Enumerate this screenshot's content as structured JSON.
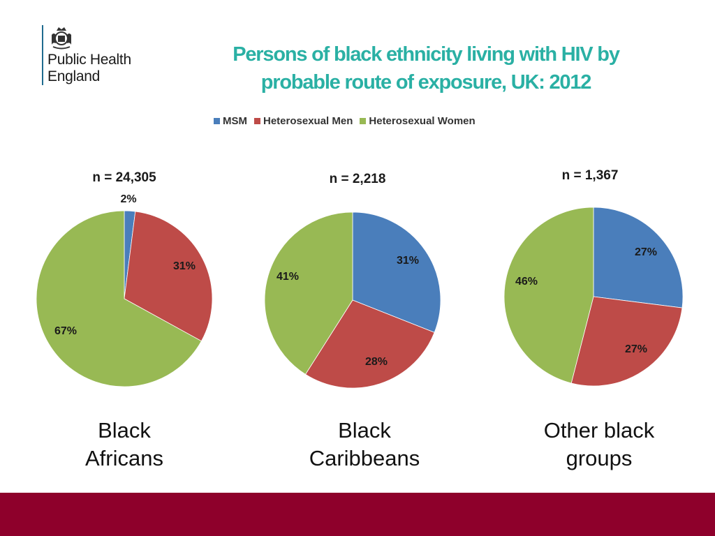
{
  "org": {
    "line1": "Public Health",
    "line2": "England"
  },
  "title": {
    "line1": "Persons of black ethnicity living with HIV by",
    "line2": "probable route of exposure, UK: 2012"
  },
  "colors": {
    "title": "#2ab0a4",
    "footer": "#8e002b"
  },
  "chart_data": [
    {
      "type": "pie",
      "n_label": "n = 24,305",
      "group": [
        "Black",
        "Africans"
      ],
      "series": [
        {
          "name": "MSM",
          "value": 2,
          "label": "2%",
          "color": "#4a7ebb"
        },
        {
          "name": "Heterosexual Men",
          "value": 31,
          "label": "31%",
          "color": "#be4b48"
        },
        {
          "name": "Heterosexual Women",
          "value": 67,
          "label": "67%",
          "color": "#98b954"
        }
      ]
    },
    {
      "type": "pie",
      "n_label": "n = 2,218",
      "group": [
        "Black",
        "Caribbeans"
      ],
      "series": [
        {
          "name": "MSM",
          "value": 31,
          "label": "31%",
          "color": "#4a7ebb"
        },
        {
          "name": "Heterosexual Men",
          "value": 28,
          "label": "28%",
          "color": "#be4b48"
        },
        {
          "name": "Heterosexual Women",
          "value": 41,
          "label": "41%",
          "color": "#98b954"
        }
      ]
    },
    {
      "type": "pie",
      "n_label": "n = 1,367",
      "group": [
        "Other black",
        "groups"
      ],
      "series": [
        {
          "name": "MSM",
          "value": 27,
          "label": "27%",
          "color": "#4a7ebb"
        },
        {
          "name": "Heterosexual Men",
          "value": 27,
          "label": "27%",
          "color": "#be4b48"
        },
        {
          "name": "Heterosexual Women",
          "value": 46,
          "label": "46%",
          "color": "#98b954"
        }
      ]
    }
  ],
  "legend": [
    {
      "name": "MSM",
      "color": "#4a7ebb"
    },
    {
      "name": "Heterosexual Men",
      "color": "#be4b48"
    },
    {
      "name": "Heterosexual Women",
      "color": "#98b954"
    }
  ]
}
